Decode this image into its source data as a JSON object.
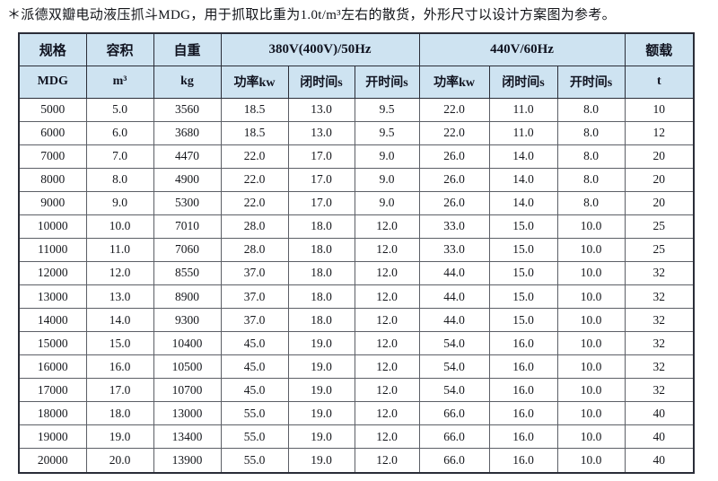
{
  "note": "＊派德双瓣电动液压抓斗MDG，用于抓取比重为1.0t/m³左右的散货，外形尺寸以设计方案图为参考。",
  "colors": {
    "header_bg": "#cee3f1",
    "outer_border": "#2a2d38",
    "inner_border": "#5c5f66",
    "text": "#15171c"
  },
  "table": {
    "header_row1": {
      "spec": "规格",
      "volume": "容积",
      "weight": "自重",
      "group_380": "380V(400V)/50Hz",
      "group_440": "440V/60Hz",
      "rated": "额载"
    },
    "header_row2": {
      "spec_unit": "MDG",
      "volume_unit": "m³",
      "weight_unit": "kg",
      "power_380": "功率kw",
      "close_time_380": "闭时间s",
      "open_time_380": "开时间s",
      "power_440": "功率kw",
      "close_time_440": "闭时间s",
      "open_time_440": "开时间s",
      "rated_unit": "t"
    },
    "rows": [
      [
        "5000",
        "5.0",
        "3560",
        "18.5",
        "13.0",
        "9.5",
        "22.0",
        "11.0",
        "8.0",
        "10"
      ],
      [
        "6000",
        "6.0",
        "3680",
        "18.5",
        "13.0",
        "9.5",
        "22.0",
        "11.0",
        "8.0",
        "12"
      ],
      [
        "7000",
        "7.0",
        "4470",
        "22.0",
        "17.0",
        "9.0",
        "26.0",
        "14.0",
        "8.0",
        "20"
      ],
      [
        "8000",
        "8.0",
        "4900",
        "22.0",
        "17.0",
        "9.0",
        "26.0",
        "14.0",
        "8.0",
        "20"
      ],
      [
        "9000",
        "9.0",
        "5300",
        "22.0",
        "17.0",
        "9.0",
        "26.0",
        "14.0",
        "8.0",
        "20"
      ],
      [
        "10000",
        "10.0",
        "7010",
        "28.0",
        "18.0",
        "12.0",
        "33.0",
        "15.0",
        "10.0",
        "25"
      ],
      [
        "11000",
        "11.0",
        "7060",
        "28.0",
        "18.0",
        "12.0",
        "33.0",
        "15.0",
        "10.0",
        "25"
      ],
      [
        "12000",
        "12.0",
        "8550",
        "37.0",
        "18.0",
        "12.0",
        "44.0",
        "15.0",
        "10.0",
        "32"
      ],
      [
        "13000",
        "13.0",
        "8900",
        "37.0",
        "18.0",
        "12.0",
        "44.0",
        "15.0",
        "10.0",
        "32"
      ],
      [
        "14000",
        "14.0",
        "9300",
        "37.0",
        "18.0",
        "12.0",
        "44.0",
        "15.0",
        "10.0",
        "32"
      ],
      [
        "15000",
        "15.0",
        "10400",
        "45.0",
        "19.0",
        "12.0",
        "54.0",
        "16.0",
        "10.0",
        "32"
      ],
      [
        "16000",
        "16.0",
        "10500",
        "45.0",
        "19.0",
        "12.0",
        "54.0",
        "16.0",
        "10.0",
        "32"
      ],
      [
        "17000",
        "17.0",
        "10700",
        "45.0",
        "19.0",
        "12.0",
        "54.0",
        "16.0",
        "10.0",
        "32"
      ],
      [
        "18000",
        "18.0",
        "13000",
        "55.0",
        "19.0",
        "12.0",
        "66.0",
        "16.0",
        "10.0",
        "40"
      ],
      [
        "19000",
        "19.0",
        "13400",
        "55.0",
        "19.0",
        "12.0",
        "66.0",
        "16.0",
        "10.0",
        "40"
      ],
      [
        "20000",
        "20.0",
        "13900",
        "55.0",
        "19.0",
        "12.0",
        "66.0",
        "16.0",
        "10.0",
        "40"
      ]
    ]
  }
}
